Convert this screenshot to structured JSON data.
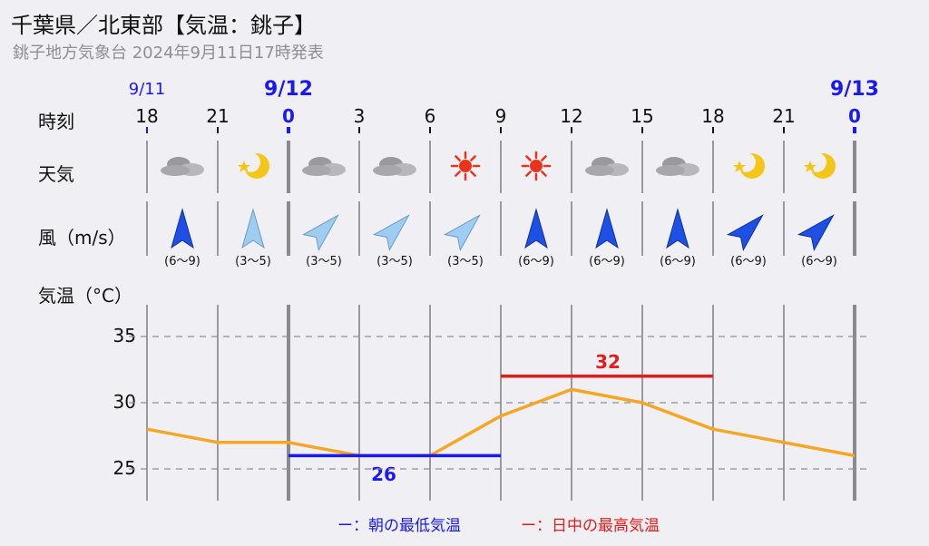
{
  "header": {
    "title": "千葉県／北東部【気温：銚子】",
    "subtitle": "銚子地方気象台 2024年9月11日17時発表"
  },
  "row_labels": {
    "time": "時刻",
    "weather": "天気",
    "wind": "風（m/s）",
    "temp": "気温（°C）"
  },
  "dates": [
    {
      "label": "9/11",
      "slot": 0
    },
    {
      "label": "9/12",
      "slot": 2
    },
    {
      "label": "9/13",
      "slot": 10
    }
  ],
  "hours": [
    "18",
    "21",
    "0",
    "3",
    "6",
    "9",
    "12",
    "15",
    "18",
    "21",
    "0"
  ],
  "weather": [
    "cloud-icon",
    "moon-icon",
    "cloud-icon",
    "cloud-icon",
    "sun-icon",
    "sun-icon",
    "cloud-icon",
    "cloud-icon",
    "moon-icon",
    "moon-icon"
  ],
  "wind": [
    {
      "text": "(6〜9)",
      "dir": 180,
      "strong": true
    },
    {
      "text": "(3〜5)",
      "dir": 180,
      "strong": false
    },
    {
      "text": "(3〜5)",
      "dir": 225,
      "strong": false
    },
    {
      "text": "(3〜5)",
      "dir": 225,
      "strong": false
    },
    {
      "text": "(3〜5)",
      "dir": 225,
      "strong": false
    },
    {
      "text": "(6〜9)",
      "dir": 180,
      "strong": true
    },
    {
      "text": "(6〜9)",
      "dir": 180,
      "strong": true
    },
    {
      "text": "(6〜9)",
      "dir": 180,
      "strong": true
    },
    {
      "text": "(6〜9)",
      "dir": 225,
      "strong": true
    },
    {
      "text": "(6〜9)",
      "dir": 225,
      "strong": true
    }
  ],
  "chart_data": {
    "type": "line",
    "x": [
      "18",
      "21",
      "0",
      "3",
      "6",
      "9",
      "12",
      "15",
      "18",
      "21",
      "0"
    ],
    "series": [
      {
        "values": [
          28,
          27,
          27,
          26,
          26,
          29,
          31,
          30,
          28,
          27,
          26
        ]
      }
    ],
    "ylim": [
      23,
      37
    ],
    "yticks": [
      25,
      30,
      35
    ],
    "grid": true,
    "min_temp": {
      "value": 26,
      "label": "26",
      "from_index": 2,
      "to_index": 5
    },
    "max_temp": {
      "value": 32,
      "label": "32",
      "from_index": 5,
      "to_index": 8
    }
  },
  "legend": {
    "min": "ー：朝の最低気温",
    "max": "ー：日中の最高気温"
  },
  "colors": {
    "line": "#f5a623",
    "min": "#1a1aee",
    "max": "#e51a1a",
    "date": "#1a1aee"
  }
}
